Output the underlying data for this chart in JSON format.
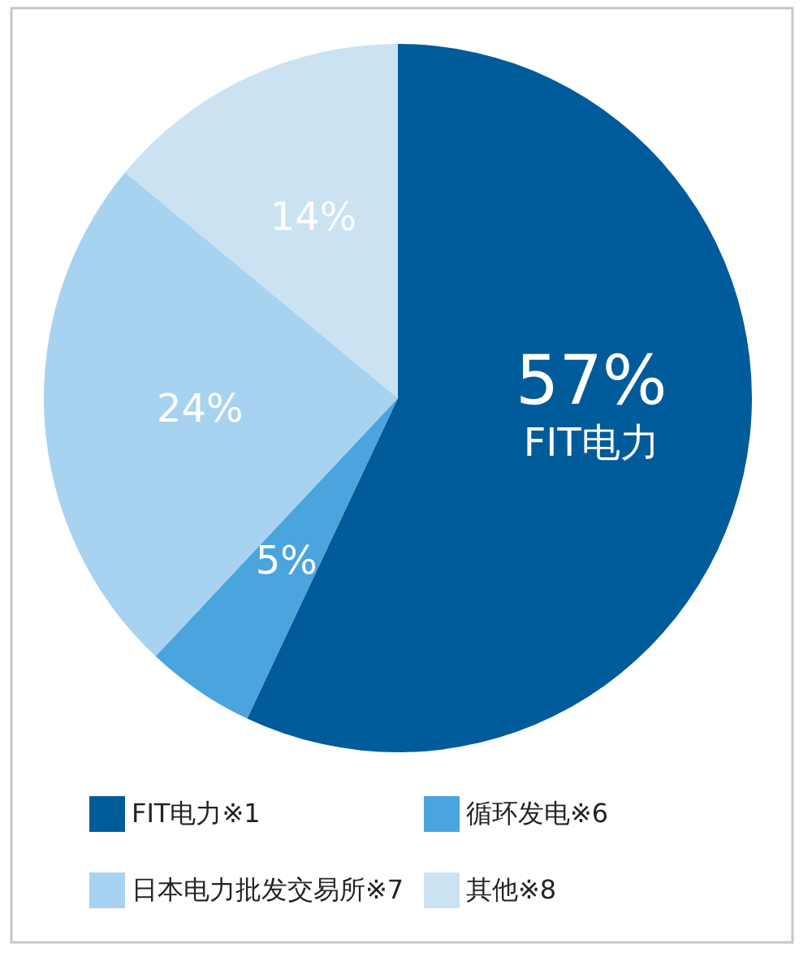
{
  "chart_data": {
    "type": "pie",
    "categories": [
      "FIT电力※1",
      "循环发电※6",
      "日本电力批发交易所※7",
      "其他※8"
    ],
    "values": [
      57,
      5,
      24,
      14
    ],
    "colors": [
      "#005b9b",
      "#4aa4de",
      "#a7d3f1",
      "#cbe2f3"
    ],
    "value_labels": [
      "57%",
      "5%",
      "24%",
      "14%"
    ],
    "annotations": [
      {
        "text": "FIT电力",
        "x": "FIT电力※1"
      }
    ],
    "legend": "bottom"
  }
}
